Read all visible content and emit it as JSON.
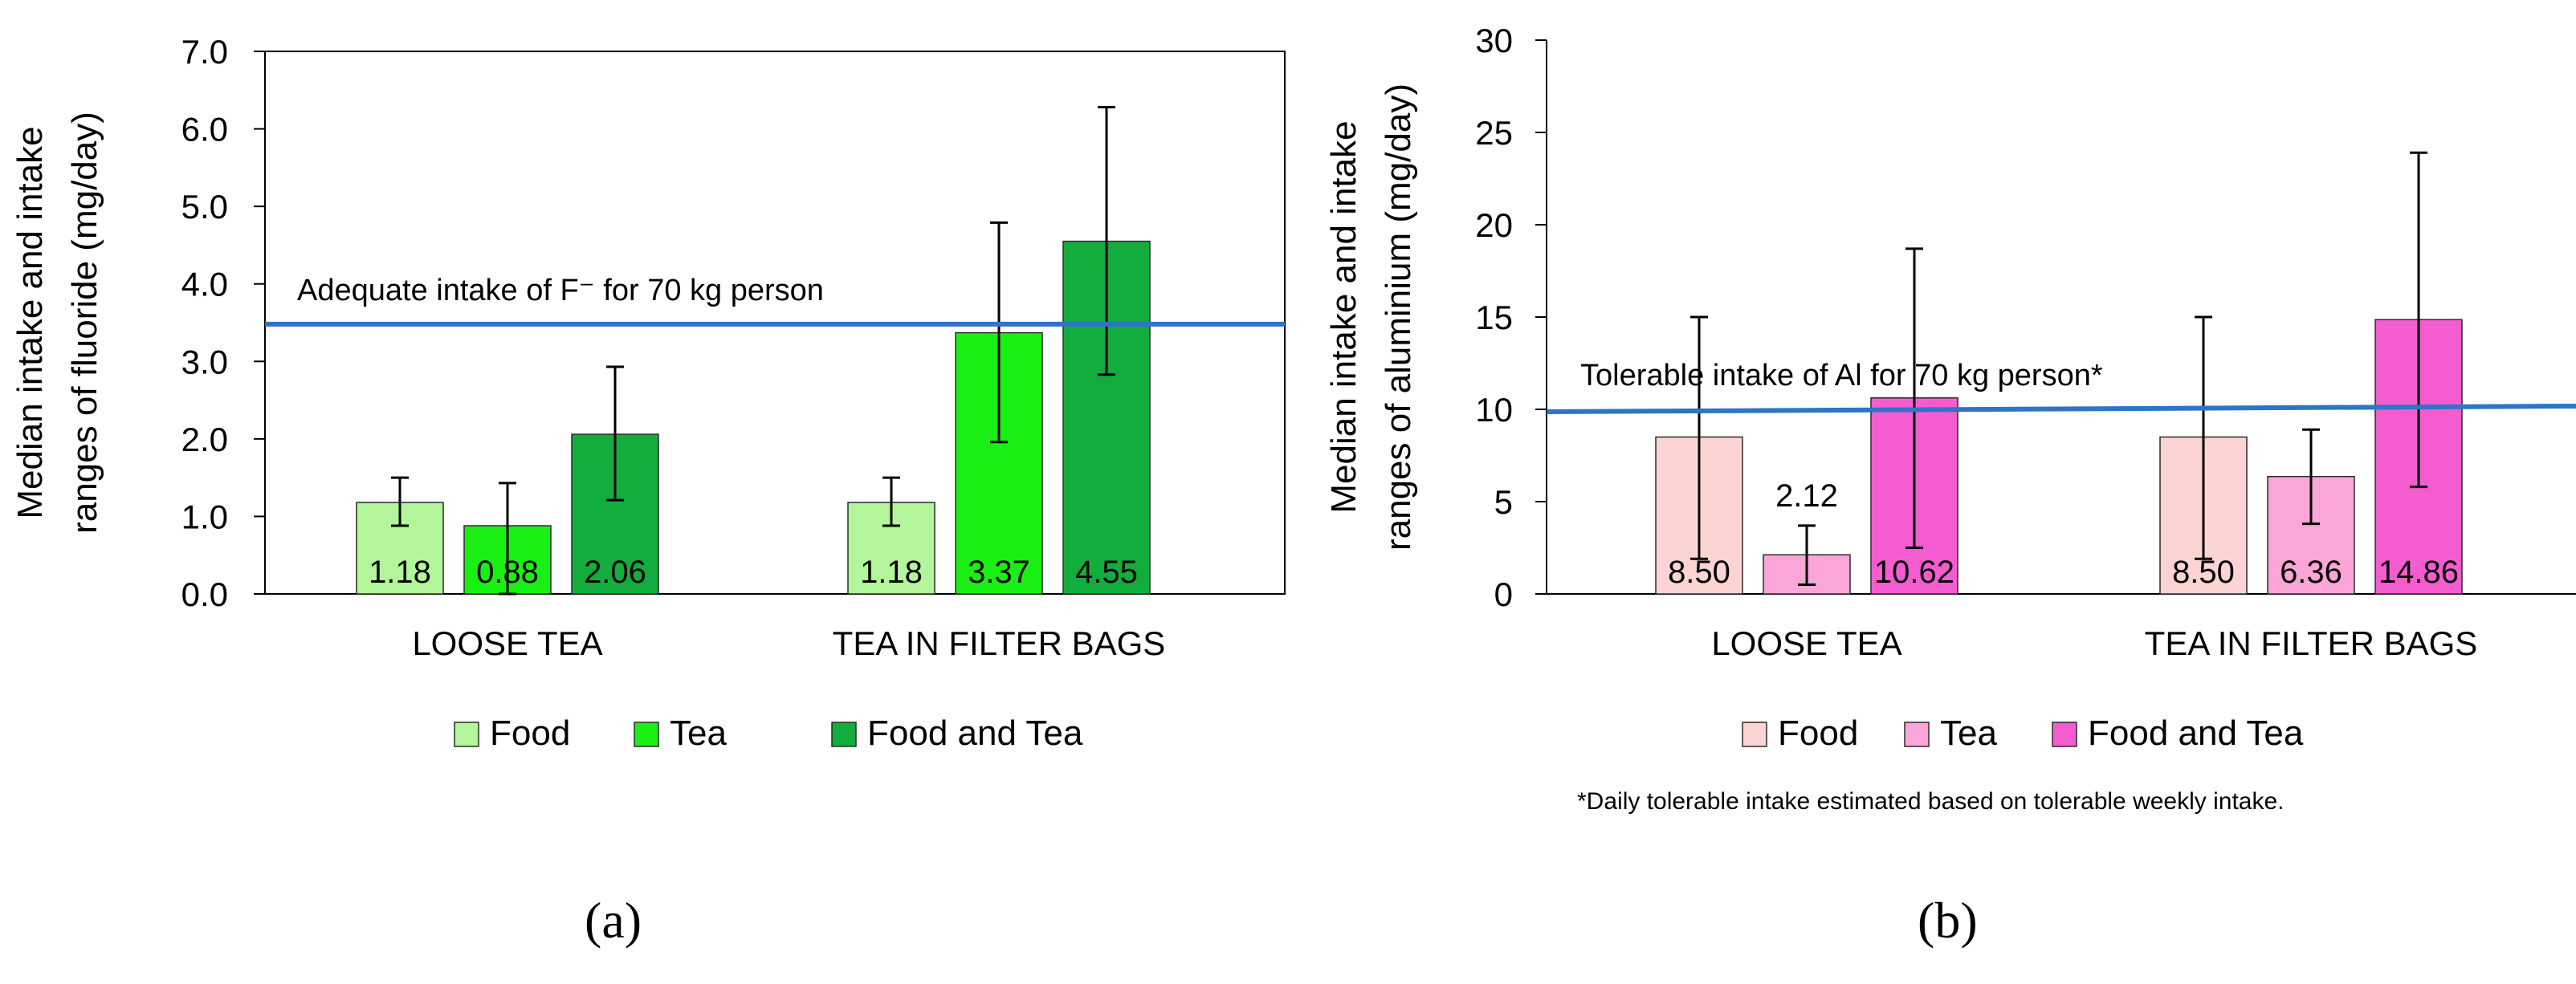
{
  "panels": [
    {
      "tag": "(a)",
      "chart_data": {
        "type": "bar",
        "ylabel": [
          "Median intake and intake",
          "ranges of fluoride (mg/day)"
        ],
        "ylim": [
          0,
          7
        ],
        "ytick_labels": [
          "0.0",
          "1.0",
          "2.0",
          "3.0",
          "4.0",
          "5.0",
          "6.0",
          "7.0"
        ],
        "categories": [
          "LOOSE TEA",
          "TEA IN FILTER BAGS"
        ],
        "series": [
          {
            "name": "Food",
            "color": "#b3f59a",
            "values": [
              1.18,
              1.18
            ],
            "labels": [
              "1.18",
              "1.18"
            ],
            "err_low": [
              0.88,
              0.88
            ],
            "err_high": [
              1.5,
              1.5
            ]
          },
          {
            "name": "Tea",
            "color": "#1aef14",
            "values": [
              0.88,
              3.37
            ],
            "labels": [
              "0.88",
              "3.37"
            ],
            "err_low": [
              0.0,
              1.96
            ],
            "err_high": [
              1.43,
              4.79
            ]
          },
          {
            "name": "Food and Tea",
            "color": "#12ad3d",
            "values": [
              2.06,
              4.55
            ],
            "labels": [
              "2.06",
              "4.55"
            ],
            "err_low": [
              1.21,
              2.83
            ],
            "err_high": [
              2.93,
              6.28
            ]
          }
        ],
        "reference_line": {
          "value": 3.48,
          "label": "Adequate intake of F⁻ for 70 kg person",
          "color": "#2e75c6"
        }
      }
    },
    {
      "tag": "(b)",
      "note": "*Daily tolerable intake estimated based on tolerable weekly intake.",
      "chart_data": {
        "type": "bar",
        "ylabel": [
          "Median intake and intake",
          "ranges of aluminium (mg/day)"
        ],
        "ylim": [
          0,
          30
        ],
        "ytick_labels": [
          "0",
          "5",
          "10",
          "15",
          "20",
          "25",
          "30"
        ],
        "categories": [
          "LOOSE TEA",
          "TEA IN FILTER BAGS"
        ],
        "series": [
          {
            "name": "Food",
            "color": "#fdd4d4",
            "values": [
              8.5,
              8.5
            ],
            "labels": [
              "8.50",
              "8.50"
            ],
            "err_low": [
              1.9,
              1.9
            ],
            "err_high": [
              15.0,
              15.0
            ]
          },
          {
            "name": "Tea",
            "color": "#fba5d8",
            "values": [
              2.12,
              6.36
            ],
            "labels": [
              "2.12",
              "6.36"
            ],
            "err_low": [
              0.5,
              3.8
            ],
            "err_high": [
              3.7,
              8.9
            ]
          },
          {
            "name": "Food and Tea",
            "color": "#f55cd0",
            "values": [
              10.62,
              14.86
            ],
            "labels": [
              "10.62",
              "14.86"
            ],
            "err_low": [
              2.5,
              5.8
            ],
            "err_high": [
              18.7,
              23.9
            ]
          }
        ],
        "reference_line": {
          "value": 10.0,
          "label": "Tolerable intake of Al for 70 kg person*",
          "color": "#2e75c6"
        }
      }
    }
  ]
}
